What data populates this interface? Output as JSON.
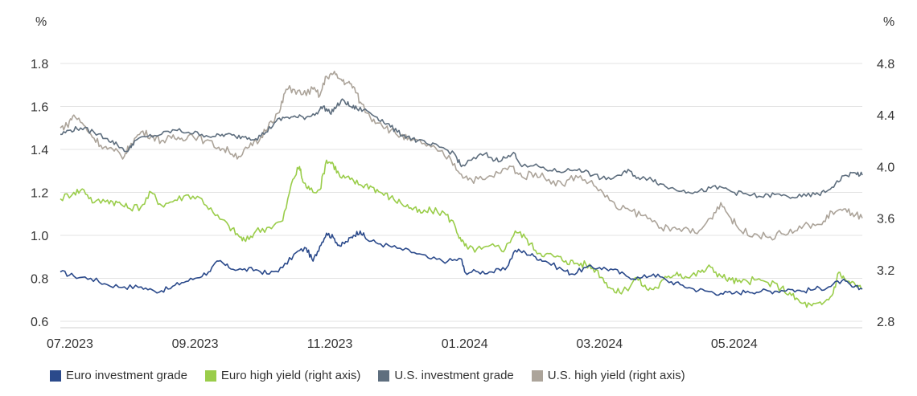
{
  "chart_data": {
    "type": "line",
    "left_axis_unit": "%",
    "right_axis_unit": "%",
    "left_ticks": [
      "0.6",
      "0.8",
      "1.0",
      "1.2",
      "1.4",
      "1.6",
      "1.8"
    ],
    "right_ticks": [
      "2.8",
      "3.2",
      "3.6",
      "4.0",
      "4.4",
      "4.8"
    ],
    "left_ylim": [
      0.6,
      1.8
    ],
    "right_ylim": [
      2.8,
      4.8
    ],
    "x_ticks": [
      "07.2023",
      "09.2023",
      "11.2023",
      "01.2024",
      "03.2024",
      "05.2024"
    ],
    "x_tick_times": [
      0,
      2,
      4,
      6,
      8,
      10
    ],
    "x_range": [
      0,
      11.9
    ],
    "grid": "horizontal",
    "legend_position": "bottom",
    "series": [
      {
        "name": "Euro investment grade",
        "axis": "left",
        "color": "#2b4a8b",
        "points": [
          [
            0.0,
            0.83
          ],
          [
            0.2,
            0.81
          ],
          [
            0.45,
            0.8
          ],
          [
            0.7,
            0.77
          ],
          [
            0.95,
            0.76
          ],
          [
            1.2,
            0.76
          ],
          [
            1.4,
            0.74
          ],
          [
            1.6,
            0.75
          ],
          [
            1.8,
            0.78
          ],
          [
            2.0,
            0.8
          ],
          [
            2.2,
            0.83
          ],
          [
            2.35,
            0.88
          ],
          [
            2.5,
            0.85
          ],
          [
            2.7,
            0.84
          ],
          [
            2.9,
            0.84
          ],
          [
            3.1,
            0.82
          ],
          [
            3.3,
            0.85
          ],
          [
            3.5,
            0.92
          ],
          [
            3.65,
            0.94
          ],
          [
            3.75,
            0.88
          ],
          [
            3.85,
            0.95
          ],
          [
            3.95,
            1.01
          ],
          [
            4.05,
            0.99
          ],
          [
            4.15,
            0.95
          ],
          [
            4.25,
            0.97
          ],
          [
            4.35,
            1.0
          ],
          [
            4.45,
            1.02
          ],
          [
            4.55,
            0.98
          ],
          [
            4.75,
            0.96
          ],
          [
            5.0,
            0.94
          ],
          [
            5.25,
            0.92
          ],
          [
            5.5,
            0.89
          ],
          [
            5.75,
            0.88
          ],
          [
            5.95,
            0.89
          ],
          [
            6.0,
            0.83
          ],
          [
            6.2,
            0.83
          ],
          [
            6.4,
            0.83
          ],
          [
            6.6,
            0.84
          ],
          [
            6.75,
            0.93
          ],
          [
            6.9,
            0.92
          ],
          [
            7.05,
            0.9
          ],
          [
            7.2,
            0.88
          ],
          [
            7.45,
            0.84
          ],
          [
            7.6,
            0.82
          ],
          [
            7.8,
            0.85
          ],
          [
            8.0,
            0.85
          ],
          [
            8.2,
            0.84
          ],
          [
            8.4,
            0.81
          ],
          [
            8.6,
            0.8
          ],
          [
            8.8,
            0.82
          ],
          [
            9.0,
            0.79
          ],
          [
            9.2,
            0.77
          ],
          [
            9.4,
            0.75
          ],
          [
            9.6,
            0.74
          ],
          [
            9.8,
            0.73
          ],
          [
            10.0,
            0.73
          ],
          [
            10.2,
            0.74
          ],
          [
            10.4,
            0.74
          ],
          [
            10.6,
            0.74
          ],
          [
            10.8,
            0.75
          ],
          [
            11.0,
            0.74
          ],
          [
            11.2,
            0.75
          ],
          [
            11.4,
            0.76
          ],
          [
            11.6,
            0.79
          ],
          [
            11.75,
            0.76
          ],
          [
            11.9,
            0.75
          ]
        ]
      },
      {
        "name": "Euro high yield (right axis)",
        "axis": "right",
        "color": "#9acd4a",
        "points": [
          [
            0.0,
            3.75
          ],
          [
            0.2,
            3.8
          ],
          [
            0.35,
            3.82
          ],
          [
            0.5,
            3.72
          ],
          [
            0.7,
            3.74
          ],
          [
            0.85,
            3.72
          ],
          [
            1.0,
            3.68
          ],
          [
            1.2,
            3.69
          ],
          [
            1.35,
            3.8
          ],
          [
            1.5,
            3.7
          ],
          [
            1.7,
            3.74
          ],
          [
            1.9,
            3.78
          ],
          [
            2.1,
            3.75
          ],
          [
            2.3,
            3.62
          ],
          [
            2.5,
            3.54
          ],
          [
            2.65,
            3.46
          ],
          [
            2.75,
            3.42
          ],
          [
            2.9,
            3.5
          ],
          [
            3.1,
            3.53
          ],
          [
            3.3,
            3.58
          ],
          [
            3.45,
            3.9
          ],
          [
            3.55,
            4.0
          ],
          [
            3.6,
            3.88
          ],
          [
            3.7,
            3.82
          ],
          [
            3.85,
            3.82
          ],
          [
            3.95,
            4.05
          ],
          [
            4.05,
            4.02
          ],
          [
            4.15,
            3.92
          ],
          [
            4.3,
            3.9
          ],
          [
            4.45,
            3.86
          ],
          [
            4.6,
            3.85
          ],
          [
            4.75,
            3.8
          ],
          [
            4.9,
            3.76
          ],
          [
            5.05,
            3.72
          ],
          [
            5.2,
            3.68
          ],
          [
            5.35,
            3.64
          ],
          [
            5.5,
            3.66
          ],
          [
            5.7,
            3.64
          ],
          [
            5.85,
            3.55
          ],
          [
            5.95,
            3.42
          ],
          [
            6.05,
            3.36
          ],
          [
            6.25,
            3.36
          ],
          [
            6.45,
            3.38
          ],
          [
            6.6,
            3.36
          ],
          [
            6.75,
            3.5
          ],
          [
            6.9,
            3.45
          ],
          [
            7.05,
            3.35
          ],
          [
            7.2,
            3.32
          ],
          [
            7.35,
            3.3
          ],
          [
            7.5,
            3.27
          ],
          [
            7.65,
            3.25
          ],
          [
            7.8,
            3.24
          ],
          [
            7.95,
            3.2
          ],
          [
            8.1,
            3.1
          ],
          [
            8.25,
            3.02
          ],
          [
            8.4,
            3.05
          ],
          [
            8.55,
            3.14
          ],
          [
            8.7,
            3.05
          ],
          [
            8.85,
            3.06
          ],
          [
            9.0,
            3.14
          ],
          [
            9.15,
            3.18
          ],
          [
            9.3,
            3.14
          ],
          [
            9.5,
            3.18
          ],
          [
            9.65,
            3.22
          ],
          [
            9.8,
            3.15
          ],
          [
            9.95,
            3.12
          ],
          [
            10.1,
            3.1
          ],
          [
            10.3,
            3.12
          ],
          [
            10.5,
            3.1
          ],
          [
            10.7,
            3.06
          ],
          [
            10.85,
            3.0
          ],
          [
            11.0,
            2.94
          ],
          [
            11.15,
            2.92
          ],
          [
            11.3,
            2.93
          ],
          [
            11.45,
            3.0
          ],
          [
            11.55,
            3.18
          ],
          [
            11.65,
            3.12
          ],
          [
            11.8,
            3.08
          ],
          [
            11.9,
            3.05
          ]
        ]
      },
      {
        "name": "U.S. investment grade",
        "axis": "left",
        "color": "#5e6e7e",
        "points": [
          [
            0.0,
            1.47
          ],
          [
            0.15,
            1.49
          ],
          [
            0.3,
            1.5
          ],
          [
            0.5,
            1.48
          ],
          [
            0.7,
            1.45
          ],
          [
            0.85,
            1.42
          ],
          [
            1.0,
            1.39
          ],
          [
            1.1,
            1.44
          ],
          [
            1.3,
            1.46
          ],
          [
            1.5,
            1.47
          ],
          [
            1.7,
            1.49
          ],
          [
            1.9,
            1.48
          ],
          [
            2.1,
            1.47
          ],
          [
            2.3,
            1.46
          ],
          [
            2.45,
            1.47
          ],
          [
            2.6,
            1.46
          ],
          [
            2.75,
            1.46
          ],
          [
            2.9,
            1.45
          ],
          [
            3.05,
            1.48
          ],
          [
            3.2,
            1.53
          ],
          [
            3.35,
            1.55
          ],
          [
            3.5,
            1.55
          ],
          [
            3.65,
            1.55
          ],
          [
            3.8,
            1.57
          ],
          [
            3.9,
            1.6
          ],
          [
            4.0,
            1.57
          ],
          [
            4.1,
            1.6
          ],
          [
            4.2,
            1.63
          ],
          [
            4.3,
            1.6
          ],
          [
            4.4,
            1.59
          ],
          [
            4.55,
            1.58
          ],
          [
            4.7,
            1.55
          ],
          [
            4.85,
            1.52
          ],
          [
            5.0,
            1.48
          ],
          [
            5.15,
            1.46
          ],
          [
            5.3,
            1.44
          ],
          [
            5.5,
            1.42
          ],
          [
            5.65,
            1.41
          ],
          [
            5.85,
            1.38
          ],
          [
            5.95,
            1.32
          ],
          [
            6.1,
            1.35
          ],
          [
            6.3,
            1.38
          ],
          [
            6.45,
            1.35
          ],
          [
            6.6,
            1.36
          ],
          [
            6.75,
            1.38
          ],
          [
            6.85,
            1.32
          ],
          [
            7.1,
            1.32
          ],
          [
            7.3,
            1.3
          ],
          [
            7.5,
            1.3
          ],
          [
            7.7,
            1.31
          ],
          [
            7.9,
            1.28
          ],
          [
            8.1,
            1.26
          ],
          [
            8.3,
            1.28
          ],
          [
            8.45,
            1.3
          ],
          [
            8.6,
            1.26
          ],
          [
            8.75,
            1.27
          ],
          [
            8.9,
            1.24
          ],
          [
            9.05,
            1.22
          ],
          [
            9.25,
            1.21
          ],
          [
            9.45,
            1.2
          ],
          [
            9.65,
            1.22
          ],
          [
            9.85,
            1.22
          ],
          [
            10.0,
            1.2
          ],
          [
            10.2,
            1.19
          ],
          [
            10.4,
            1.18
          ],
          [
            10.6,
            1.19
          ],
          [
            10.8,
            1.18
          ],
          [
            11.0,
            1.18
          ],
          [
            11.2,
            1.19
          ],
          [
            11.35,
            1.2
          ],
          [
            11.5,
            1.24
          ],
          [
            11.65,
            1.28
          ],
          [
            11.8,
            1.29
          ],
          [
            11.9,
            1.28
          ]
        ]
      },
      {
        "name": "U.S. high yield (right axis)",
        "axis": "right",
        "color": "#aca49a",
        "points": [
          [
            0.0,
            4.3
          ],
          [
            0.1,
            4.32
          ],
          [
            0.2,
            4.4
          ],
          [
            0.35,
            4.32
          ],
          [
            0.5,
            4.22
          ],
          [
            0.65,
            4.15
          ],
          [
            0.8,
            4.12
          ],
          [
            0.95,
            4.08
          ],
          [
            1.05,
            4.18
          ],
          [
            1.2,
            4.27
          ],
          [
            1.35,
            4.24
          ],
          [
            1.5,
            4.2
          ],
          [
            1.65,
            4.22
          ],
          [
            1.8,
            4.22
          ],
          [
            1.95,
            4.25
          ],
          [
            2.15,
            4.2
          ],
          [
            2.35,
            4.15
          ],
          [
            2.5,
            4.12
          ],
          [
            2.65,
            4.08
          ],
          [
            2.8,
            4.15
          ],
          [
            2.95,
            4.2
          ],
          [
            3.1,
            4.34
          ],
          [
            3.25,
            4.42
          ],
          [
            3.35,
            4.6
          ],
          [
            3.45,
            4.6
          ],
          [
            3.6,
            4.56
          ],
          [
            3.75,
            4.6
          ],
          [
            3.85,
            4.55
          ],
          [
            3.95,
            4.7
          ],
          [
            4.05,
            4.72
          ],
          [
            4.15,
            4.68
          ],
          [
            4.25,
            4.65
          ],
          [
            4.35,
            4.62
          ],
          [
            4.45,
            4.5
          ],
          [
            4.6,
            4.38
          ],
          [
            4.75,
            4.34
          ],
          [
            4.9,
            4.28
          ],
          [
            5.05,
            4.24
          ],
          [
            5.2,
            4.2
          ],
          [
            5.4,
            4.18
          ],
          [
            5.6,
            4.12
          ],
          [
            5.8,
            4.05
          ],
          [
            5.95,
            3.94
          ],
          [
            6.1,
            3.9
          ],
          [
            6.3,
            3.9
          ],
          [
            6.5,
            3.95
          ],
          [
            6.7,
            4.0
          ],
          [
            6.85,
            3.92
          ],
          [
            7.05,
            3.95
          ],
          [
            7.25,
            3.9
          ],
          [
            7.45,
            3.86
          ],
          [
            7.65,
            3.93
          ],
          [
            7.85,
            3.88
          ],
          [
            8.05,
            3.8
          ],
          [
            8.25,
            3.68
          ],
          [
            8.45,
            3.66
          ],
          [
            8.65,
            3.62
          ],
          [
            8.85,
            3.56
          ],
          [
            9.05,
            3.5
          ],
          [
            9.25,
            3.52
          ],
          [
            9.45,
            3.48
          ],
          [
            9.65,
            3.6
          ],
          [
            9.8,
            3.72
          ],
          [
            9.95,
            3.6
          ],
          [
            10.1,
            3.5
          ],
          [
            10.3,
            3.48
          ],
          [
            10.5,
            3.45
          ],
          [
            10.7,
            3.48
          ],
          [
            10.9,
            3.5
          ],
          [
            11.1,
            3.55
          ],
          [
            11.3,
            3.55
          ],
          [
            11.45,
            3.65
          ],
          [
            11.6,
            3.66
          ],
          [
            11.75,
            3.64
          ],
          [
            11.9,
            3.6
          ]
        ]
      }
    ]
  }
}
